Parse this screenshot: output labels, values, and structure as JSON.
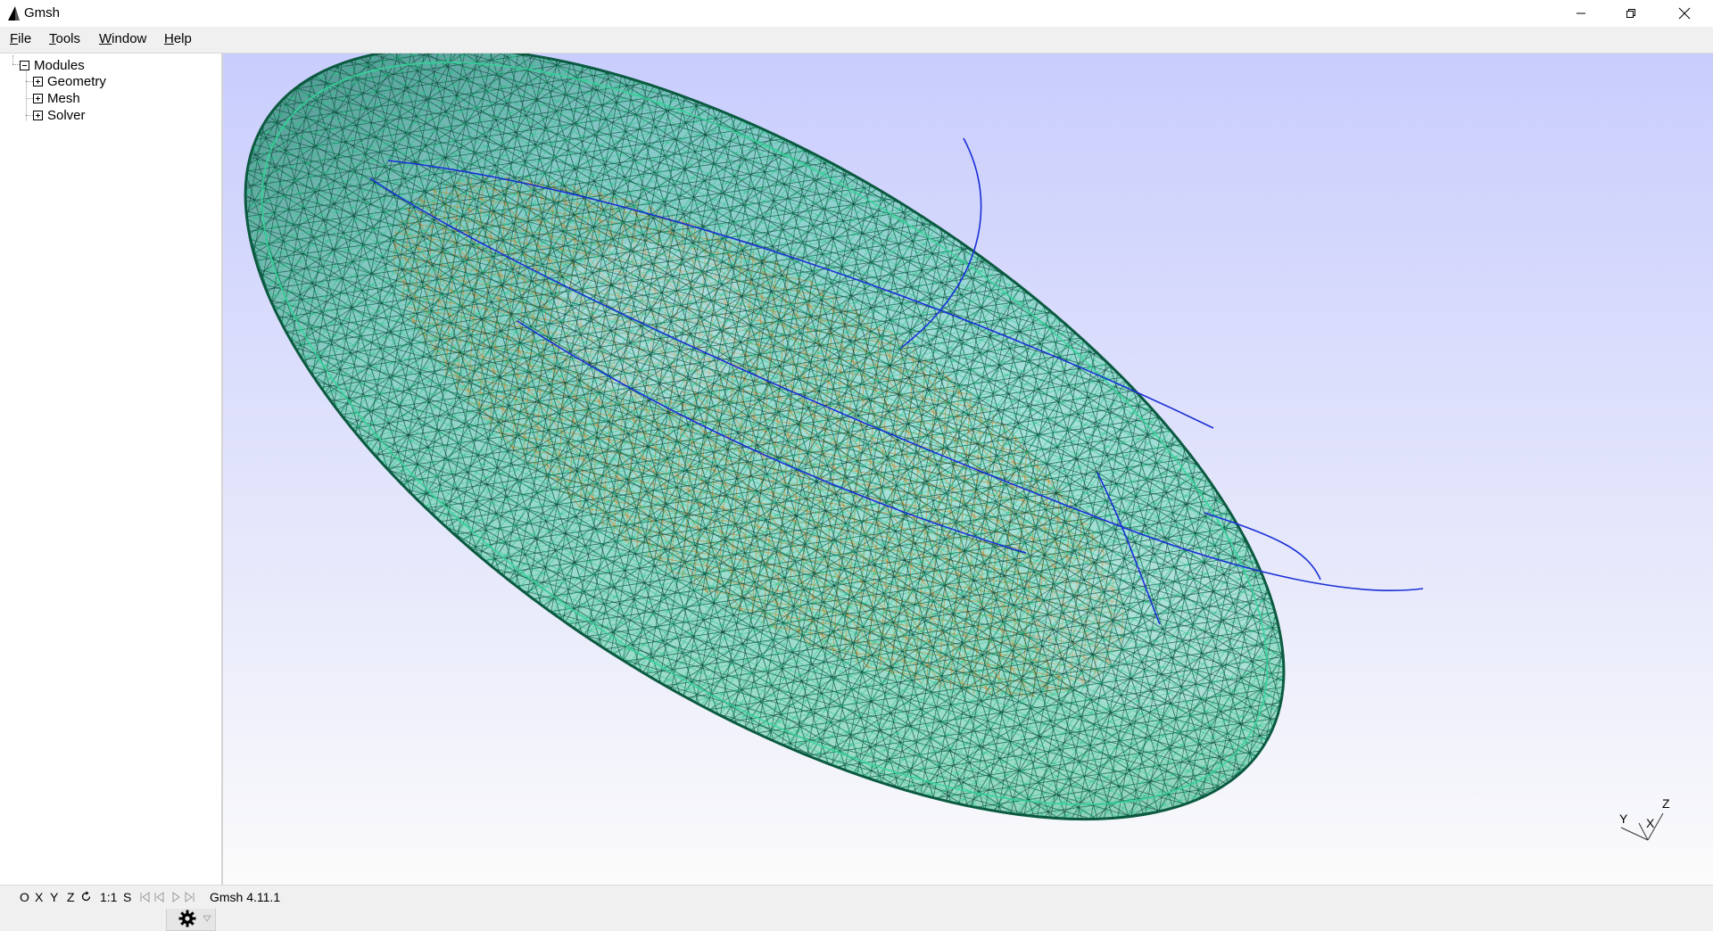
{
  "window": {
    "title": "Gmsh",
    "controls": {
      "minimize": "minimize-icon",
      "restore": "restore-icon",
      "close": "close-icon"
    }
  },
  "menu": {
    "items": [
      {
        "label": "File",
        "accel": "F"
      },
      {
        "label": "Tools",
        "accel": "T"
      },
      {
        "label": "Window",
        "accel": "W"
      },
      {
        "label": "Help",
        "accel": "H"
      }
    ]
  },
  "tree": {
    "root": {
      "label": "Modules",
      "expanded": true
    },
    "children": [
      {
        "label": "Geometry",
        "expanded": false
      },
      {
        "label": "Mesh",
        "expanded": false
      },
      {
        "label": "Solver",
        "expanded": false
      }
    ]
  },
  "statusbar": {
    "view_buttons": [
      "O",
      "X",
      "Y",
      "Z"
    ],
    "rotate_icon": "rotate-icon",
    "scale_label": "1:1",
    "select_label": "S",
    "playback_icons": [
      "first-icon",
      "previous-icon",
      "play-icon",
      "last-icon"
    ],
    "message": "Gmsh 4.11.1"
  },
  "axes": {
    "x": "X",
    "y": "Y",
    "z": "Z"
  },
  "colors": {
    "mesh_green": "#1fa86f",
    "mesh_dark": "#0b4a3a",
    "mesh_orange": "#c8801a",
    "curve_blue": "#1a2fd6",
    "bg_top": "#c9cdfd",
    "bg_bottom": "#fbfbfb"
  }
}
